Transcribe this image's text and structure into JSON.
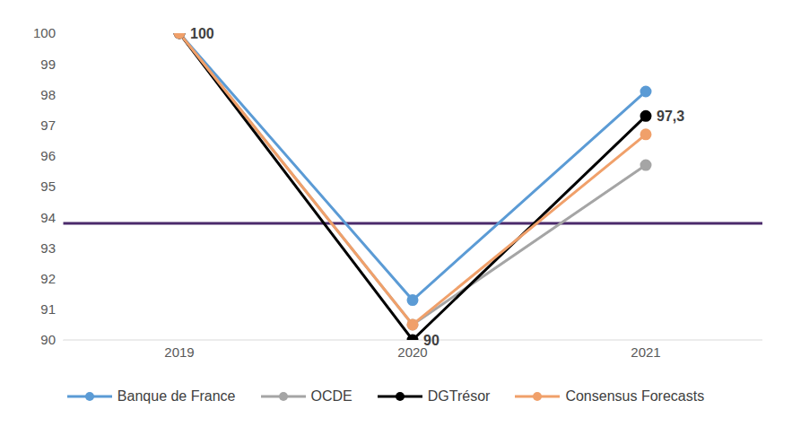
{
  "chart_data": {
    "type": "line",
    "categories": [
      "2019",
      "2020",
      "2021"
    ],
    "series": [
      {
        "name": "Banque de France",
        "color": "#5B9BD5",
        "marker": "circle",
        "values": [
          100,
          91.3,
          98.1
        ]
      },
      {
        "name": "OCDE",
        "color": "#A5A5A5",
        "marker": "circle",
        "values": [
          100,
          90.5,
          95.7
        ]
      },
      {
        "name": "DGTrésor",
        "color": "#000000",
        "marker": "circle",
        "values": [
          100,
          90,
          97.3
        ],
        "data_labels": true,
        "value_labels": [
          "100",
          "90",
          "97,3"
        ]
      },
      {
        "name": "Consensus Forecasts",
        "color": "#F0A06A",
        "marker": "circle",
        "values": [
          100,
          90.5,
          96.7
        ]
      }
    ],
    "ylim": [
      90,
      100
    ],
    "yticks": [
      90,
      91,
      92,
      93,
      94,
      95,
      96,
      97,
      98,
      99,
      100
    ],
    "grid": false,
    "legend": "bottom",
    "reference_line": {
      "value": 93.8,
      "color": "#4B2A6B"
    }
  }
}
